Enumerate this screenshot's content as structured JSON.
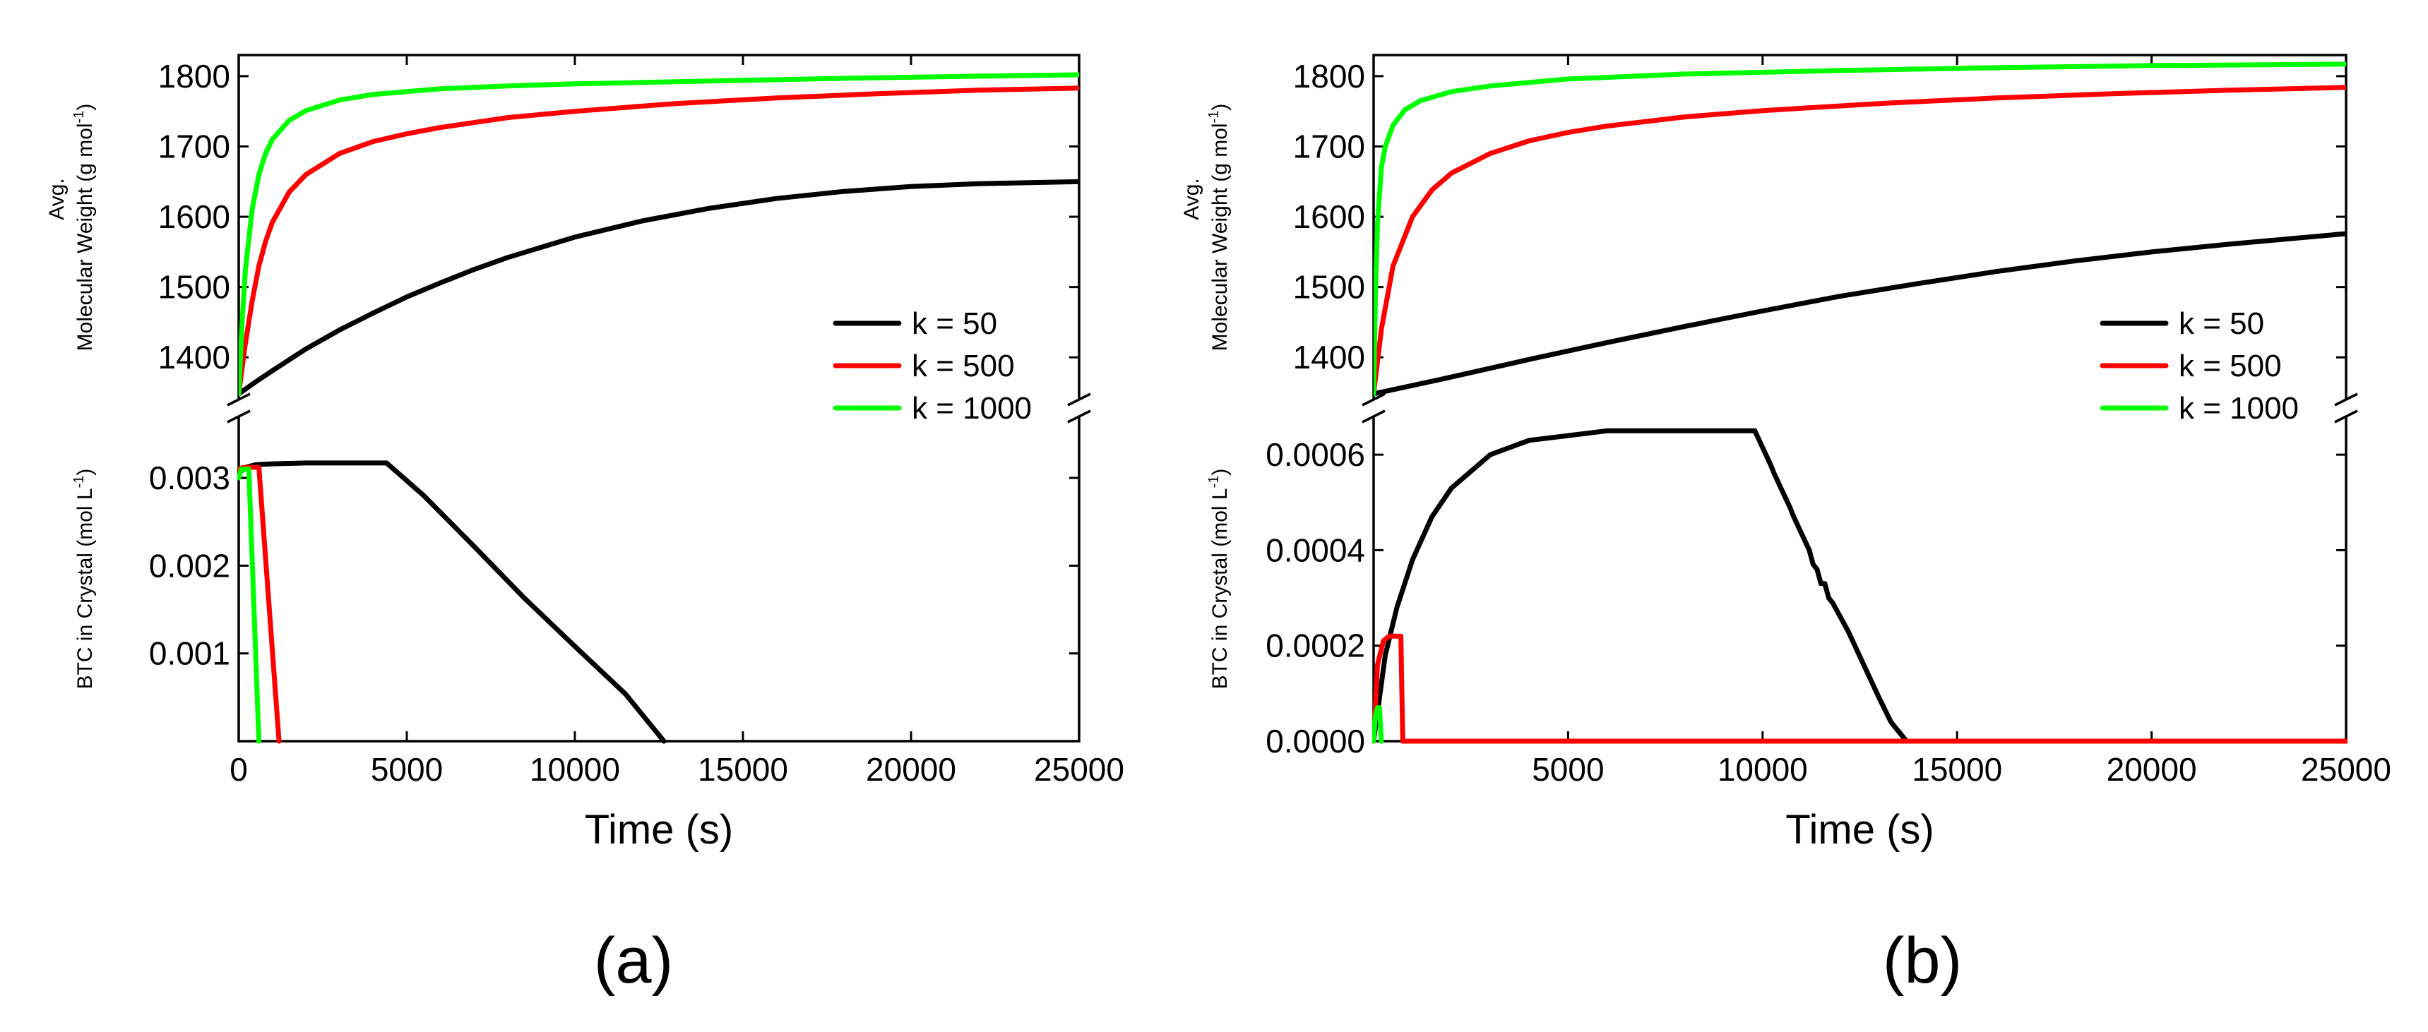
{
  "chart_data": [
    {
      "type": "line",
      "panel_label": "(a)",
      "xlabel": "Time (s)",
      "xlim": [
        0,
        25000
      ],
      "xticks": [
        0,
        5000,
        10000,
        15000,
        20000,
        25000
      ],
      "xtick_labels": [
        "0",
        "5000",
        "10000",
        "15000",
        "20000",
        "25000"
      ],
      "legend_position": "right, above axis break",
      "legend": [
        "k = 50",
        "k = 500",
        "k = 1000"
      ],
      "colors": [
        "#000000",
        "#ff0000",
        "#00ff00"
      ],
      "top": {
        "ylabel_line1": "Avg.",
        "ylabel_line2": "Molecular Weight (g mol",
        "ylabel_sup": "-1",
        "ylabel_end": ")",
        "ylim": [
          1340,
          1830
        ],
        "yticks": [
          1400,
          1500,
          1600,
          1700,
          1800
        ],
        "ytick_labels": [
          "1400",
          "1500",
          "1600",
          "1700",
          "1800"
        ],
        "series": [
          {
            "name": "k = 50",
            "x": [
              0,
              500,
              1000,
              2000,
              3000,
              4000,
              5000,
              6000,
              7000,
              8000,
              10000,
              12000,
              14000,
              16000,
              18000,
              20000,
              22000,
              25000
            ],
            "y": [
              1348,
              1365,
              1381,
              1412,
              1439,
              1463,
              1486,
              1506,
              1525,
              1542,
              1571,
              1594,
              1612,
              1626,
              1636,
              1643,
              1647,
              1650
            ]
          },
          {
            "name": "k = 500",
            "x": [
              0,
              200,
              400,
              600,
              800,
              1000,
              1500,
              2000,
              3000,
              4000,
              5000,
              6000,
              8000,
              10000,
              13000,
              16000,
              19000,
              22000,
              25000
            ],
            "y": [
              1348,
              1420,
              1480,
              1530,
              1565,
              1592,
              1635,
              1660,
              1690,
              1707,
              1718,
              1727,
              1741,
              1750,
              1761,
              1769,
              1775,
              1780,
              1783
            ]
          },
          {
            "name": "k = 1000",
            "x": [
              0,
              100,
              200,
              400,
              600,
              800,
              1000,
              1500,
              2000,
              3000,
              4000,
              6000,
              8000,
              10000,
              14000,
              18000,
              22000,
              25000
            ],
            "y": [
              1348,
              1450,
              1525,
              1610,
              1660,
              1690,
              1710,
              1737,
              1751,
              1766,
              1774,
              1782,
              1786,
              1789,
              1793,
              1797,
              1800,
              1802
            ]
          }
        ]
      },
      "bottom": {
        "ylabel_main": "BTC in Crystal (mol L",
        "ylabel_sup": "-1",
        "ylabel_end": ")",
        "ylim": [
          0,
          0.0037
        ],
        "yticks": [
          0.001,
          0.002,
          0.003
        ],
        "ytick_labels": [
          "0.001",
          "0.002",
          "0.003"
        ],
        "series": [
          {
            "name": "k = 50",
            "x": [
              0,
              200,
              500,
              1000,
              2000,
              3000,
              4400,
              5500,
              7000,
              8500,
              10000,
              11500,
              12650
            ],
            "y": [
              0.00305,
              0.00312,
              0.00315,
              0.00316,
              0.00317,
              0.00317,
              0.00317,
              0.0028,
              0.00222,
              0.00163,
              0.00108,
              0.00054,
              0.0
            ]
          },
          {
            "name": "k = 500",
            "x": [
              0,
              150,
              600,
              1200
            ],
            "y": [
              0.0031,
              0.00312,
              0.00312,
              0.0
            ]
          },
          {
            "name": "k = 1000",
            "x": [
              0,
              80,
              300,
              600
            ],
            "y": [
              0.003,
              0.0031,
              0.0031,
              0.0
            ]
          }
        ]
      }
    },
    {
      "type": "line",
      "panel_label": "(b)",
      "xlabel": "Time (s)",
      "xlim": [
        0,
        25000
      ],
      "xticks": [
        5000,
        10000,
        15000,
        20000,
        25000
      ],
      "xtick_labels": [
        "5000",
        "10000",
        "15000",
        "20000",
        "25000"
      ],
      "legend_position": "right, above axis break",
      "legend": [
        "k = 50",
        "k = 500",
        "k = 1000"
      ],
      "colors": [
        "#000000",
        "#ff0000",
        "#00ff00"
      ],
      "top": {
        "ylabel_line1": "Avg.",
        "ylabel_line2": "Molecular Weight (g mol",
        "ylabel_sup": "-1",
        "ylabel_end": ")",
        "ylim": [
          1340,
          1830
        ],
        "yticks": [
          1400,
          1500,
          1600,
          1700,
          1800
        ],
        "ytick_labels": [
          "1400",
          "1500",
          "1600",
          "1700",
          "1800"
        ],
        "series": [
          {
            "name": "k = 50",
            "x": [
              0,
              1000,
              2000,
              4000,
              6000,
              8000,
              10000,
              12000,
              14000,
              16000,
              18000,
              20000,
              22000,
              25000
            ],
            "y": [
              1348,
              1360,
              1372,
              1397,
              1421,
              1444,
              1466,
              1487,
              1505,
              1522,
              1537,
              1550,
              1561,
              1576
            ]
          },
          {
            "name": "k = 500",
            "x": [
              0,
              200,
              500,
              1000,
              1500,
              2000,
              3000,
              4000,
              5000,
              6000,
              8000,
              10000,
              13000,
              16000,
              19000,
              22000,
              25000
            ],
            "y": [
              1348,
              1440,
              1530,
              1600,
              1638,
              1662,
              1690,
              1708,
              1720,
              1729,
              1742,
              1751,
              1761,
              1769,
              1775,
              1780,
              1784
            ]
          },
          {
            "name": "k = 1000",
            "x": [
              0,
              50,
              100,
              200,
              300,
              500,
              800,
              1200,
              2000,
              3000,
              5000,
              8000,
              12000,
              16000,
              20000,
              25000
            ],
            "y": [
              1348,
              1500,
              1590,
              1670,
              1700,
              1730,
              1752,
              1765,
              1778,
              1786,
              1796,
              1803,
              1808,
              1812,
              1815,
              1817
            ]
          }
        ]
      },
      "bottom": {
        "ylabel_main": "BTC in Crystal (mol L",
        "ylabel_sup": "-1",
        "ylabel_end": ")",
        "ylim": [
          0,
          0.00068
        ],
        "yticks": [
          0.0,
          0.0002,
          0.0004,
          0.0006
        ],
        "ytick_labels": [
          "0.0000",
          "0.0002",
          "0.0004",
          "0.0006"
        ],
        "series": [
          {
            "name": "k = 50",
            "x": [
              0,
              300,
              600,
              1000,
              1500,
              2000,
              3000,
              4000,
              5000,
              6000,
              7000,
              8000,
              9800,
              10200,
              10300,
              10700,
              10800,
              11200,
              11300,
              11400,
              11500,
              11600,
              11700,
              11800,
              12200,
              12600,
              13000,
              13300,
              13700,
              25000
            ],
            "y": [
              0.0,
              0.00018,
              0.00028,
              0.00038,
              0.00047,
              0.00053,
              0.0006,
              0.00063,
              0.00064,
              0.00065,
              0.00065,
              0.00065,
              0.00065,
              0.00058,
              0.00056,
              0.00049,
              0.00047,
              0.0004,
              0.00037,
              0.00036,
              0.00033,
              0.00033,
              0.0003,
              0.00029,
              0.00023,
              0.00016,
              9e-05,
              4e-05,
              0.0,
              0.0
            ]
          },
          {
            "name": "k = 500",
            "x": [
              0,
              100,
              250,
              400,
              500,
              700,
              750,
              25000
            ],
            "y": [
              0.0,
              0.00016,
              0.00021,
              0.00022,
              0.00022,
              0.00022,
              0.0,
              0.0
            ]
          },
          {
            "name": "k = 1000",
            "x": [
              0,
              40,
              100,
              150,
              200
            ],
            "y": [
              0.0,
              5e-05,
              7e-05,
              7e-05,
              0.0
            ]
          }
        ]
      }
    }
  ]
}
